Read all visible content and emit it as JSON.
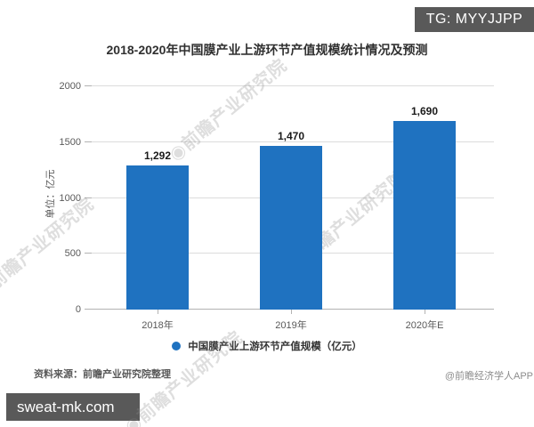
{
  "badges": {
    "top_right": "TG: MYYJJPP",
    "bottom_left": "sweat-mk.com"
  },
  "chart_data": {
    "type": "bar",
    "title": "2018-2020年中国膜产业上游环节产值规模统计情况及预测",
    "categories": [
      "2018年",
      "2019年",
      "2020年E"
    ],
    "values": [
      1292,
      1470,
      1690
    ],
    "value_labels": [
      "1,292",
      "1,470",
      "1,690"
    ],
    "ylabel": "单位：亿元",
    "xlabel": "",
    "ylim": [
      0,
      2000
    ],
    "yticks": [
      0,
      500,
      1000,
      1500,
      2000
    ],
    "grid": true,
    "legend": [
      "中国膜产业上游环节产值规模（亿元）"
    ],
    "legend_position": "bottom",
    "bar_color": "#1f72c0"
  },
  "watermark": {
    "text": "◉前瞻产业研究院"
  },
  "footer": {
    "source": "资料来源：前瞻产业研究院整理",
    "credit": "@前瞻经济学人APP"
  },
  "colors": {
    "bar": "#1f72c0",
    "badge_bg": "#595959",
    "grid": "#dcdcdc",
    "axis": "#b3b3b3",
    "text_primary": "#303030",
    "text_secondary": "#595959"
  }
}
